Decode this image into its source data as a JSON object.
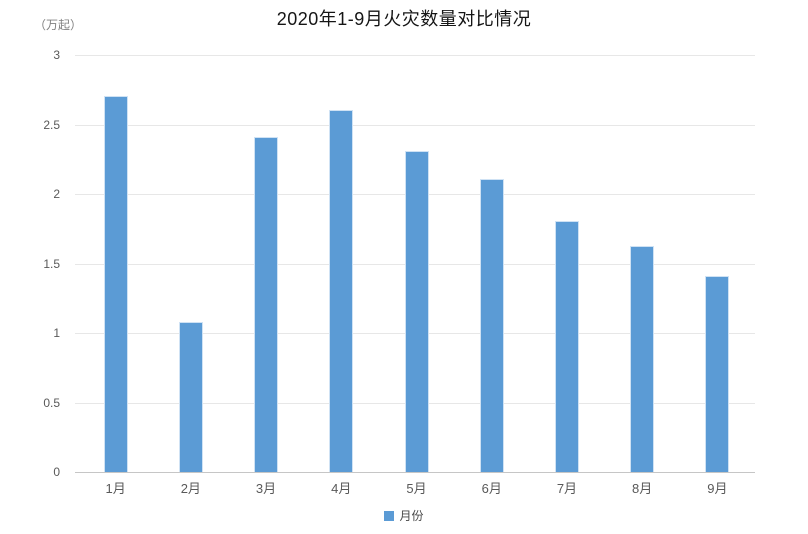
{
  "chart_data": {
    "type": "bar",
    "title": "2020年1-9月火灾数量对比情况",
    "unit_label": "（万起）",
    "categories": [
      "1月",
      "2月",
      "3月",
      "4月",
      "5月",
      "6月",
      "7月",
      "8月",
      "9月"
    ],
    "series": [
      {
        "name": "月份",
        "values": [
          2.7,
          1.07,
          2.4,
          2.6,
          2.3,
          2.1,
          1.8,
          1.62,
          1.4
        ]
      }
    ],
    "xlabel": "",
    "ylabel": "（万起）",
    "ylim": [
      0,
      3
    ],
    "y_ticks": [
      0,
      0.5,
      1,
      1.5,
      2,
      2.5,
      3
    ],
    "grid": true,
    "legend_position": "bottom",
    "colors": {
      "bar": "#5B9BD5",
      "gridline": "#e7e7e7",
      "axis_line": "#c6c6c6",
      "tick_text": "#595959",
      "title_text": "#151515"
    }
  },
  "legend": {
    "items": [
      {
        "label": "月份",
        "color": "#5B9BD5"
      }
    ]
  }
}
